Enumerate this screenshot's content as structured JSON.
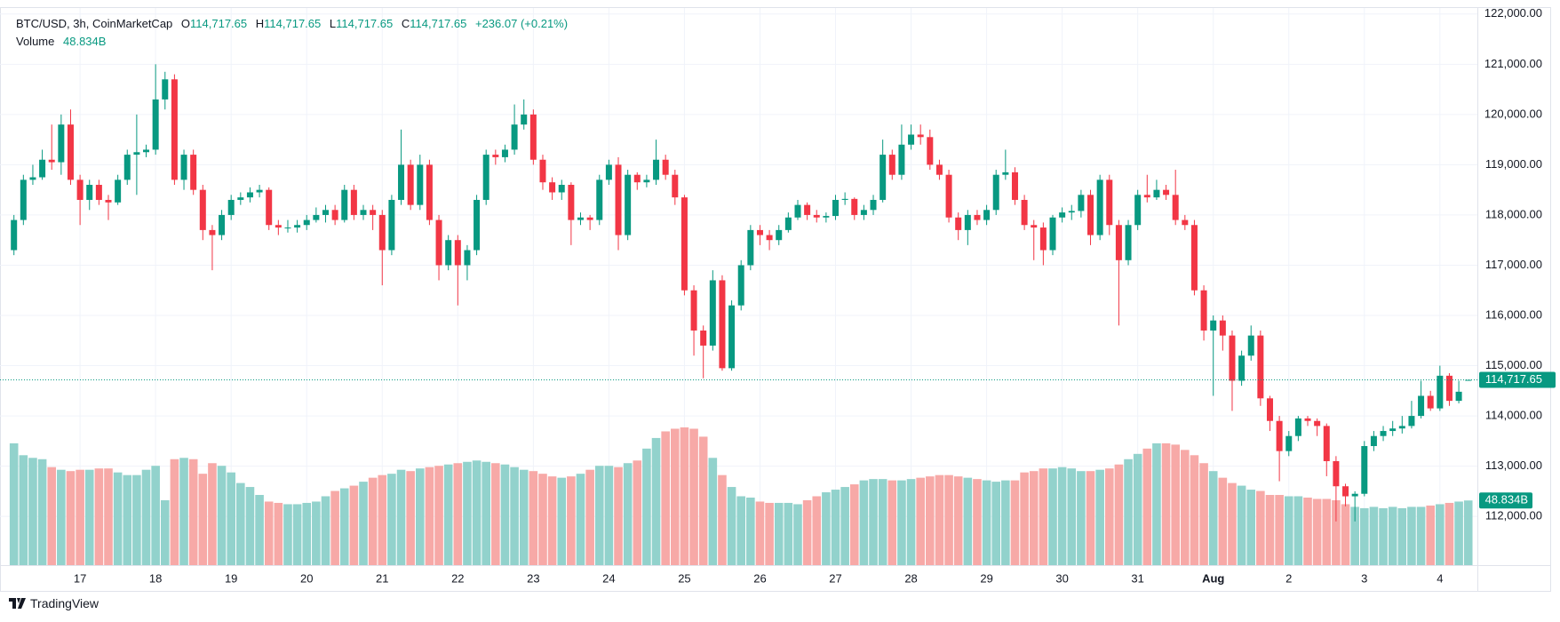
{
  "chart_data": {
    "type": "candlestick",
    "title": "BTC/USD, 3h, CoinMarketCap",
    "legend_values": [
      "O",
      "H",
      "L",
      "C"
    ],
    "last_price": {
      "value": 114717.65,
      "label": "114,717.65"
    },
    "change_label": "+236.07 (+0.21%)",
    "volume_title": "Volume",
    "last_volume": {
      "value": 48.834,
      "label": "48.834B"
    },
    "up_color": "#089981",
    "down_color": "#f23645",
    "volume_up_color": "#92d2cc",
    "volume_down_color": "#f7a9a7",
    "grid": true,
    "ylim": [
      111030,
      122120
    ],
    "yticks": [
      {
        "value": 112000,
        "label": "112,000.00"
      },
      {
        "value": 113000,
        "label": "113,000.00"
      },
      {
        "value": 114000,
        "label": "114,000.00"
      },
      {
        "value": 115000,
        "label": "115,000.00"
      },
      {
        "value": 116000,
        "label": "116,000.00"
      },
      {
        "value": 117000,
        "label": "117,000.00"
      },
      {
        "value": 118000,
        "label": "118,000.00"
      },
      {
        "value": 119000,
        "label": "119,000.00"
      },
      {
        "value": 120000,
        "label": "120,000.00"
      },
      {
        "value": 121000,
        "label": "121,000.00"
      },
      {
        "value": 122000,
        "label": "122,000.00"
      }
    ],
    "x": [
      null,
      null,
      null,
      null,
      null,
      null,
      null,
      "17",
      null,
      null,
      null,
      null,
      null,
      null,
      null,
      "18",
      null,
      null,
      null,
      null,
      null,
      null,
      null,
      "19",
      null,
      null,
      null,
      null,
      null,
      null,
      null,
      "20",
      null,
      null,
      null,
      null,
      null,
      null,
      null,
      "21",
      null,
      null,
      null,
      null,
      null,
      null,
      null,
      "22",
      null,
      null,
      null,
      null,
      null,
      null,
      null,
      "23",
      null,
      null,
      null,
      null,
      null,
      null,
      null,
      "24",
      null,
      null,
      null,
      null,
      null,
      null,
      null,
      "25",
      null,
      null,
      null,
      null,
      null,
      null,
      null,
      "26",
      null,
      null,
      null,
      null,
      null,
      null,
      null,
      "27",
      null,
      null,
      null,
      null,
      null,
      null,
      null,
      "28",
      null,
      null,
      null,
      null,
      null,
      null,
      null,
      "29",
      null,
      null,
      null,
      null,
      null,
      null,
      null,
      "30",
      null,
      null,
      null,
      null,
      null,
      null,
      null,
      "31",
      null,
      null,
      null,
      null,
      null,
      null,
      null,
      "Aug",
      null,
      null,
      null,
      null,
      null,
      null,
      null,
      "2",
      null,
      null,
      null,
      null,
      null,
      null,
      null,
      "3",
      null,
      null,
      null,
      null,
      null,
      null,
      null,
      "4",
      null,
      null,
      null
    ],
    "open": [
      117300,
      117900,
      118700,
      118750,
      119100,
      119050,
      119800,
      118700,
      118300,
      118600,
      118300,
      118250,
      118700,
      119200,
      119250,
      119300,
      120300,
      120700,
      118700,
      119200,
      118500,
      117700,
      117600,
      118000,
      118300,
      118350,
      118450,
      118500,
      117800,
      117750,
      117750,
      117800,
      117900,
      118000,
      118100,
      117900,
      118500,
      118000,
      118100,
      118000,
      117300,
      118300,
      119000,
      118200,
      119000,
      117900,
      117000,
      117500,
      117000,
      117300,
      118300,
      119200,
      119150,
      119300,
      119800,
      120000,
      119100,
      118650,
      118450,
      118600,
      117900,
      117950,
      117900,
      118700,
      119000,
      117600,
      118800,
      118650,
      118700,
      119100,
      118800,
      118350,
      116500,
      115700,
      115400,
      116700,
      114950,
      116200,
      117000,
      117700,
      117600,
      117500,
      117700,
      117950,
      118200,
      118000,
      117950,
      117980,
      118300,
      118320,
      118000,
      118100,
      118300,
      119200,
      118800,
      119400,
      119600,
      119550,
      119000,
      118800,
      117950,
      117700,
      118000,
      117900,
      118100,
      118800,
      118850,
      118300,
      117800,
      117750,
      117300,
      117950,
      118050,
      118080,
      118400,
      117600,
      118700,
      117800,
      117100,
      117800,
      118400,
      118350,
      118500,
      118400,
      117900,
      117800,
      116500,
      115700,
      115900,
      115600,
      114700,
      115200,
      115600,
      114350,
      113900,
      113300,
      113600,
      113950,
      113900,
      113800,
      113100,
      112600,
      112400,
      112450,
      113400,
      113600,
      113700,
      113750,
      113800,
      114000,
      114400,
      114150,
      114800,
      114300,
      114717.65
    ],
    "high": [
      118000,
      118800,
      119000,
      119300,
      119800,
      120000,
      120100,
      118800,
      118700,
      118700,
      118400,
      118800,
      119300,
      120000,
      119400,
      121000,
      120850,
      120800,
      119300,
      119300,
      118600,
      117800,
      118100,
      118400,
      118450,
      118550,
      118600,
      118550,
      117900,
      117900,
      117900,
      118000,
      118150,
      118200,
      118200,
      118600,
      118600,
      118200,
      118200,
      118100,
      118400,
      119700,
      119100,
      119200,
      119100,
      118000,
      117600,
      117600,
      117400,
      118400,
      119300,
      119300,
      119400,
      120200,
      120300,
      120100,
      119200,
      118750,
      118700,
      118650,
      118050,
      118000,
      118800,
      119100,
      119150,
      118900,
      118850,
      118800,
      119500,
      119200,
      118900,
      118400,
      116600,
      115800,
      116900,
      116800,
      116300,
      117100,
      117800,
      117800,
      117700,
      117800,
      118050,
      118300,
      118250,
      118100,
      118050,
      118400,
      118450,
      118350,
      118200,
      118400,
      119500,
      119300,
      119800,
      119800,
      119800,
      119700,
      119100,
      118900,
      118050,
      118100,
      118100,
      118200,
      118900,
      119300,
      118950,
      118400,
      117900,
      117850,
      118000,
      118150,
      118200,
      118500,
      118500,
      118800,
      118800,
      117900,
      117900,
      118500,
      118800,
      118700,
      118600,
      118900,
      118000,
      117900,
      116600,
      116000,
      116000,
      115700,
      115300,
      115800,
      115700,
      114400,
      114000,
      113700,
      114000,
      114000,
      113950,
      113850,
      113200,
      112650,
      112500,
      113500,
      113700,
      113800,
      113900,
      114000,
      114300,
      114700,
      114500,
      115000,
      114850,
      114700,
      114717.65
    ],
    "low": [
      117200,
      117800,
      118600,
      118700,
      118900,
      118800,
      118600,
      117800,
      118100,
      118200,
      117900,
      118200,
      118600,
      118400,
      119150,
      119200,
      120100,
      118600,
      118500,
      118400,
      117500,
      116900,
      117500,
      117900,
      118200,
      118250,
      118350,
      117700,
      117600,
      117650,
      117650,
      117700,
      117850,
      117850,
      117800,
      117850,
      117900,
      117900,
      117700,
      116600,
      117200,
      118200,
      118100,
      118100,
      117800,
      116700,
      116900,
      116200,
      116700,
      117200,
      118200,
      119000,
      119050,
      119200,
      119700,
      119000,
      118500,
      118300,
      118300,
      117400,
      117800,
      117700,
      117800,
      118600,
      117300,
      117500,
      118500,
      118550,
      118600,
      118700,
      118200,
      116400,
      115200,
      114750,
      115300,
      114900,
      114900,
      116100,
      116900,
      117400,
      117300,
      117400,
      117650,
      117900,
      117900,
      117850,
      117850,
      117900,
      118200,
      117900,
      117900,
      118000,
      118250,
      118700,
      118700,
      119300,
      119400,
      118900,
      118700,
      117850,
      117500,
      117400,
      117800,
      117800,
      118000,
      118700,
      118200,
      117700,
      117100,
      117000,
      117200,
      117850,
      117900,
      117950,
      117400,
      117500,
      117600,
      115800,
      117000,
      117700,
      118250,
      118300,
      118300,
      117800,
      117700,
      116400,
      115500,
      114400,
      115300,
      114100,
      114600,
      115100,
      114200,
      113700,
      112700,
      113200,
      113500,
      113800,
      113600,
      112800,
      111900,
      112200,
      111900,
      112400,
      113300,
      113500,
      113600,
      113650,
      113750,
      113950,
      114100,
      114100,
      114200,
      114250,
      114717.65
    ],
    "close": [
      117900,
      118700,
      118750,
      119100,
      119050,
      119800,
      118700,
      118300,
      118600,
      118300,
      118250,
      118700,
      119200,
      119250,
      119300,
      120300,
      120700,
      118700,
      119200,
      118500,
      117700,
      117600,
      118000,
      118300,
      118350,
      118450,
      118500,
      117800,
      117750,
      117750,
      117800,
      117900,
      118000,
      118100,
      117900,
      118500,
      118000,
      118100,
      118000,
      117300,
      118300,
      119000,
      118200,
      119000,
      117900,
      117000,
      117500,
      117000,
      117300,
      118300,
      119200,
      119150,
      119300,
      119800,
      120000,
      119100,
      118650,
      118450,
      118600,
      117900,
      117950,
      117900,
      118700,
      119000,
      117600,
      118800,
      118650,
      118700,
      119100,
      118800,
      118350,
      116500,
      115700,
      115400,
      116700,
      114950,
      116200,
      117000,
      117700,
      117600,
      117500,
      117700,
      117950,
      118200,
      118000,
      117950,
      117980,
      118300,
      118320,
      118000,
      118100,
      118300,
      119200,
      118800,
      119400,
      119600,
      119550,
      119000,
      118800,
      117950,
      117700,
      118000,
      117900,
      118100,
      118800,
      118850,
      118300,
      117800,
      117750,
      117300,
      117950,
      118050,
      118080,
      118400,
      117600,
      118700,
      117800,
      117100,
      117800,
      118400,
      118350,
      118500,
      118400,
      117900,
      117800,
      116500,
      115700,
      115900,
      115600,
      114700,
      115200,
      115600,
      114350,
      113900,
      113300,
      113600,
      113950,
      113900,
      113800,
      113100,
      112600,
      112400,
      112450,
      113400,
      113600,
      113700,
      113750,
      113800,
      114000,
      114400,
      114150,
      114800,
      114300,
      114481.58,
      114717.65
    ],
    "volume": [
      92,
      83,
      81,
      80,
      74,
      72,
      71,
      72,
      72,
      73,
      73,
      70,
      68,
      68,
      72,
      75,
      49,
      80,
      81,
      80,
      69,
      77,
      75,
      70,
      62,
      59,
      53,
      48,
      47,
      46,
      46,
      47,
      48,
      52,
      56,
      58,
      60,
      63,
      66,
      68,
      69,
      72,
      71,
      73,
      74,
      75,
      76,
      77,
      78,
      79,
      78,
      77,
      76,
      74,
      72,
      71,
      69,
      67,
      66,
      67,
      69,
      72,
      75,
      75,
      74,
      77,
      79,
      88,
      96,
      101,
      103,
      104,
      103,
      97,
      81,
      68,
      59,
      52,
      51,
      48,
      47,
      47,
      47,
      46,
      49,
      52,
      55,
      57,
      59,
      61,
      64,
      65,
      65,
      64,
      64,
      65,
      66,
      67,
      68,
      68,
      67,
      66,
      65,
      64,
      63,
      64,
      64,
      70,
      71,
      73,
      73,
      74,
      73,
      71,
      71,
      72,
      73,
      76,
      80,
      84,
      88,
      92,
      92,
      91,
      87,
      83,
      77,
      71,
      66,
      62,
      60,
      57,
      56,
      53,
      53,
      52,
      52,
      51,
      50,
      50,
      49,
      46,
      44,
      43,
      44,
      43,
      44,
      43,
      44,
      44,
      45,
      46,
      47,
      48,
      48.834
    ]
  },
  "footer": "TradingView"
}
